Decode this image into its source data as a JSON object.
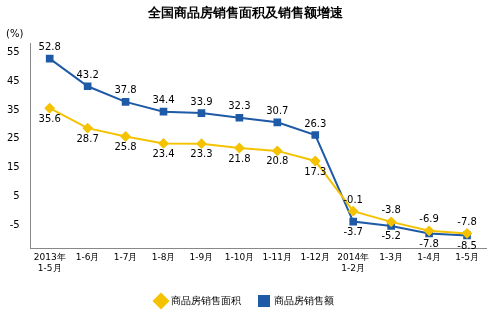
{
  "chart_data": {
    "type": "line",
    "title": "全国商品房销售面积及销售额增速",
    "ylabel": "(%)",
    "categories": [
      [
        "2013年",
        "1-5月"
      ],
      "1-6月",
      "1-7月",
      "1-8月",
      "1-9月",
      "1-10月",
      "1-11月",
      "1-12月",
      [
        "2014年",
        "1-2月"
      ],
      "1-3月",
      "1-4月",
      "1-5月"
    ],
    "series": [
      {
        "name": "商品房销售面积",
        "color": "#f5c200",
        "marker": "diamond",
        "values": [
          35.6,
          28.7,
          25.8,
          23.4,
          23.3,
          21.8,
          20.8,
          17.3,
          -0.1,
          -3.8,
          -6.9,
          -7.8
        ]
      },
      {
        "name": "商品房销售额",
        "color": "#1f5aa6",
        "marker": "square",
        "values": [
          52.8,
          43.2,
          37.8,
          34.4,
          33.9,
          32.3,
          30.7,
          26.3,
          -3.7,
          -5.2,
          -7.8,
          -8.5
        ]
      }
    ],
    "ylim": [
      -13,
      58
    ],
    "yticks": [
      -5,
      5,
      15,
      25,
      35,
      45,
      55
    ],
    "grid": false,
    "legend": "bottom",
    "data_labels": true
  }
}
